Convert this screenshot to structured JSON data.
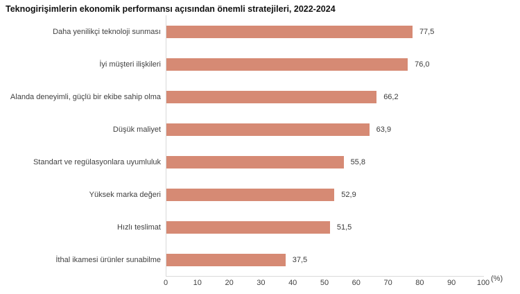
{
  "title": "Teknogirişimlerin ekonomik performansı açısından önemli stratejileri, 2022-2024",
  "colors": {
    "bar": "#d68a74",
    "axis_line": "#d9d9d9",
    "title_text": "#111111",
    "label_text": "#404040"
  },
  "axis": {
    "unit_label": "(%)",
    "ticks": [
      0,
      10,
      20,
      30,
      40,
      50,
      60,
      70,
      80,
      90,
      100
    ]
  },
  "chart_data": {
    "type": "bar",
    "orientation": "horizontal",
    "title": "Teknogirişimlerin ekonomik performansı açısından önemli stratejileri, 2022-2024",
    "categories": [
      "Daha yenilikçi teknoloji sunması",
      "İyi müşteri ilişkileri",
      "Alanda deneyimli, güçlü bir ekibe sahip olma",
      "Düşük maliyet",
      "Standart ve regülasyonlara uyumluluk",
      "Yüksek marka değeri",
      "Hızlı teslimat",
      "İthal ikamesi ürünler sunabilme"
    ],
    "values": [
      77.5,
      76.0,
      66.2,
      63.9,
      55.8,
      52.9,
      51.5,
      37.5
    ],
    "value_labels": [
      "77,5",
      "76,0",
      "66,2",
      "63,9",
      "55,8",
      "52,9",
      "51,5",
      "37,5"
    ],
    "xlabel": "(%)",
    "ylabel": "",
    "xlim": [
      0,
      100
    ],
    "grid": false,
    "legend": "none"
  }
}
